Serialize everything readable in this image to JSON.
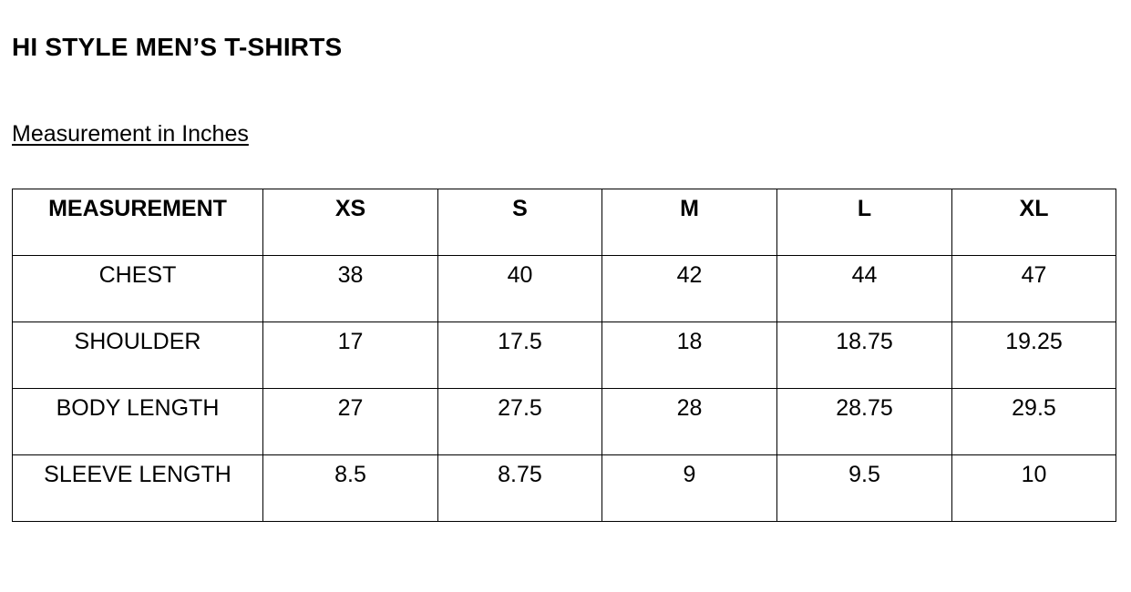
{
  "document": {
    "title": "HI STYLE MEN’S T-SHIRTS",
    "subtitle": "Measurement in Inches"
  },
  "table": {
    "headers": [
      "MEASUREMENT",
      "XS",
      "S",
      "M",
      "L",
      "XL"
    ],
    "rows": [
      [
        "CHEST",
        "38",
        "40",
        "42",
        "44",
        "47"
      ],
      [
        "SHOULDER",
        "17",
        "17.5",
        "18",
        "18.75",
        "19.25"
      ],
      [
        "BODY LENGTH",
        "27",
        "27.5",
        "28",
        "28.75",
        "29.5"
      ],
      [
        "SLEEVE LENGTH",
        "8.5",
        "8.75",
        "9",
        "9.5",
        "10"
      ]
    ]
  }
}
